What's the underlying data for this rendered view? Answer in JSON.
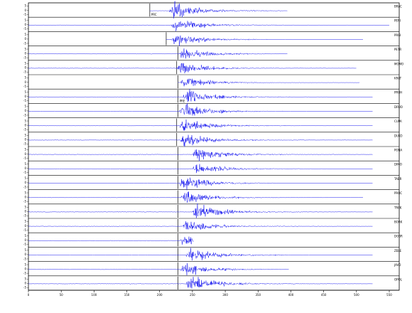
{
  "chart_data": {
    "type": "line",
    "title": "",
    "xlabel": "",
    "ylabel": "",
    "xlim": [
      0,
      550
    ],
    "x_ticks": [
      0,
      50,
      100,
      150,
      200,
      250,
      300,
      350,
      400,
      450,
      500,
      550
    ],
    "x_tick_labels": [
      "0",
      "50",
      "100",
      "150",
      "200",
      "250",
      "300",
      "350",
      "400",
      "450",
      "500",
      "550"
    ],
    "y_tick_labels": [
      "5",
      "0",
      "-5"
    ],
    "trace_color": "#1c1cf0",
    "series": [
      {
        "name": "BRAC",
        "start": 185,
        "end": 395,
        "pick": 185,
        "onset": 215,
        "amplitude": 1.0,
        "pick_label": "PRC"
      },
      {
        "name": "PERI",
        "start": 0,
        "end": 550,
        "pick": null,
        "onset": 218,
        "amplitude": 0.85,
        "pick_label": ""
      },
      {
        "name": "PRIB",
        "start": 210,
        "end": 510,
        "pick": 210,
        "onset": 218,
        "amplitude": 0.8,
        "pick_label": ""
      },
      {
        "name": "PETR",
        "start": 0,
        "end": 395,
        "pick": 228,
        "onset": 230,
        "amplitude": 0.8,
        "pick_label": ""
      },
      {
        "name": "MOMO",
        "start": 0,
        "end": 500,
        "pick": 226,
        "onset": 226,
        "amplitude": 0.75,
        "pick_label": ""
      },
      {
        "name": "KRAT",
        "start": 228,
        "end": 505,
        "pick": 228,
        "onset": 232,
        "amplitude": 0.75,
        "pick_label": ""
      },
      {
        "name": "PRUH",
        "start": 0,
        "end": 525,
        "pick": 228,
        "onset": 235,
        "amplitude": 0.9,
        "pick_label": "PRE"
      },
      {
        "name": "DRUO",
        "start": 0,
        "end": 525,
        "pick": 228,
        "onset": 230,
        "amplitude": 0.95,
        "pick_label": ""
      },
      {
        "name": "CUPA",
        "start": 0,
        "end": 525,
        "pick": 226,
        "onset": 230,
        "amplitude": 0.8,
        "pick_label": ""
      },
      {
        "name": "DUKO",
        "start": 0,
        "end": 525,
        "pick": 226,
        "onset": 232,
        "amplitude": 0.85,
        "pick_label": ""
      },
      {
        "name": "PONA",
        "start": 0,
        "end": 525,
        "pick": 228,
        "onset": 250,
        "amplitude": 0.85,
        "pick_label": ""
      },
      {
        "name": "DIMO",
        "start": 0,
        "end": 525,
        "pick": 228,
        "onset": 250,
        "amplitude": 0.75,
        "pick_label": ""
      },
      {
        "name": "TABR",
        "start": 0,
        "end": 525,
        "pick": 228,
        "onset": 230,
        "amplitude": 0.8,
        "pick_label": ""
      },
      {
        "name": "PROC",
        "start": 0,
        "end": 510,
        "pick": 228,
        "onset": 232,
        "amplitude": 0.85,
        "pick_label": ""
      },
      {
        "name": "TRAK",
        "start": 0,
        "end": 525,
        "pick": 228,
        "onset": 250,
        "amplitude": 0.95,
        "pick_label": ""
      },
      {
        "name": "BORK",
        "start": 0,
        "end": 525,
        "pick": 228,
        "onset": 235,
        "amplitude": 0.8,
        "pick_label": ""
      },
      {
        "name": "DOBR",
        "start": 0,
        "end": 252,
        "pick": 228,
        "onset": 232,
        "amplitude": 0.95,
        "pick_label": ""
      },
      {
        "name": "ZELE",
        "start": 0,
        "end": 525,
        "pick": 228,
        "onset": 240,
        "amplitude": 0.95,
        "pick_label": ""
      },
      {
        "name": "JAVO",
        "start": 0,
        "end": 397,
        "pick": 228,
        "onset": 232,
        "amplitude": 0.8,
        "pick_label": ""
      },
      {
        "name": "OPOL",
        "start": 0,
        "end": 525,
        "pick": 228,
        "onset": 240,
        "amplitude": 0.95,
        "pick_label": ""
      }
    ]
  }
}
